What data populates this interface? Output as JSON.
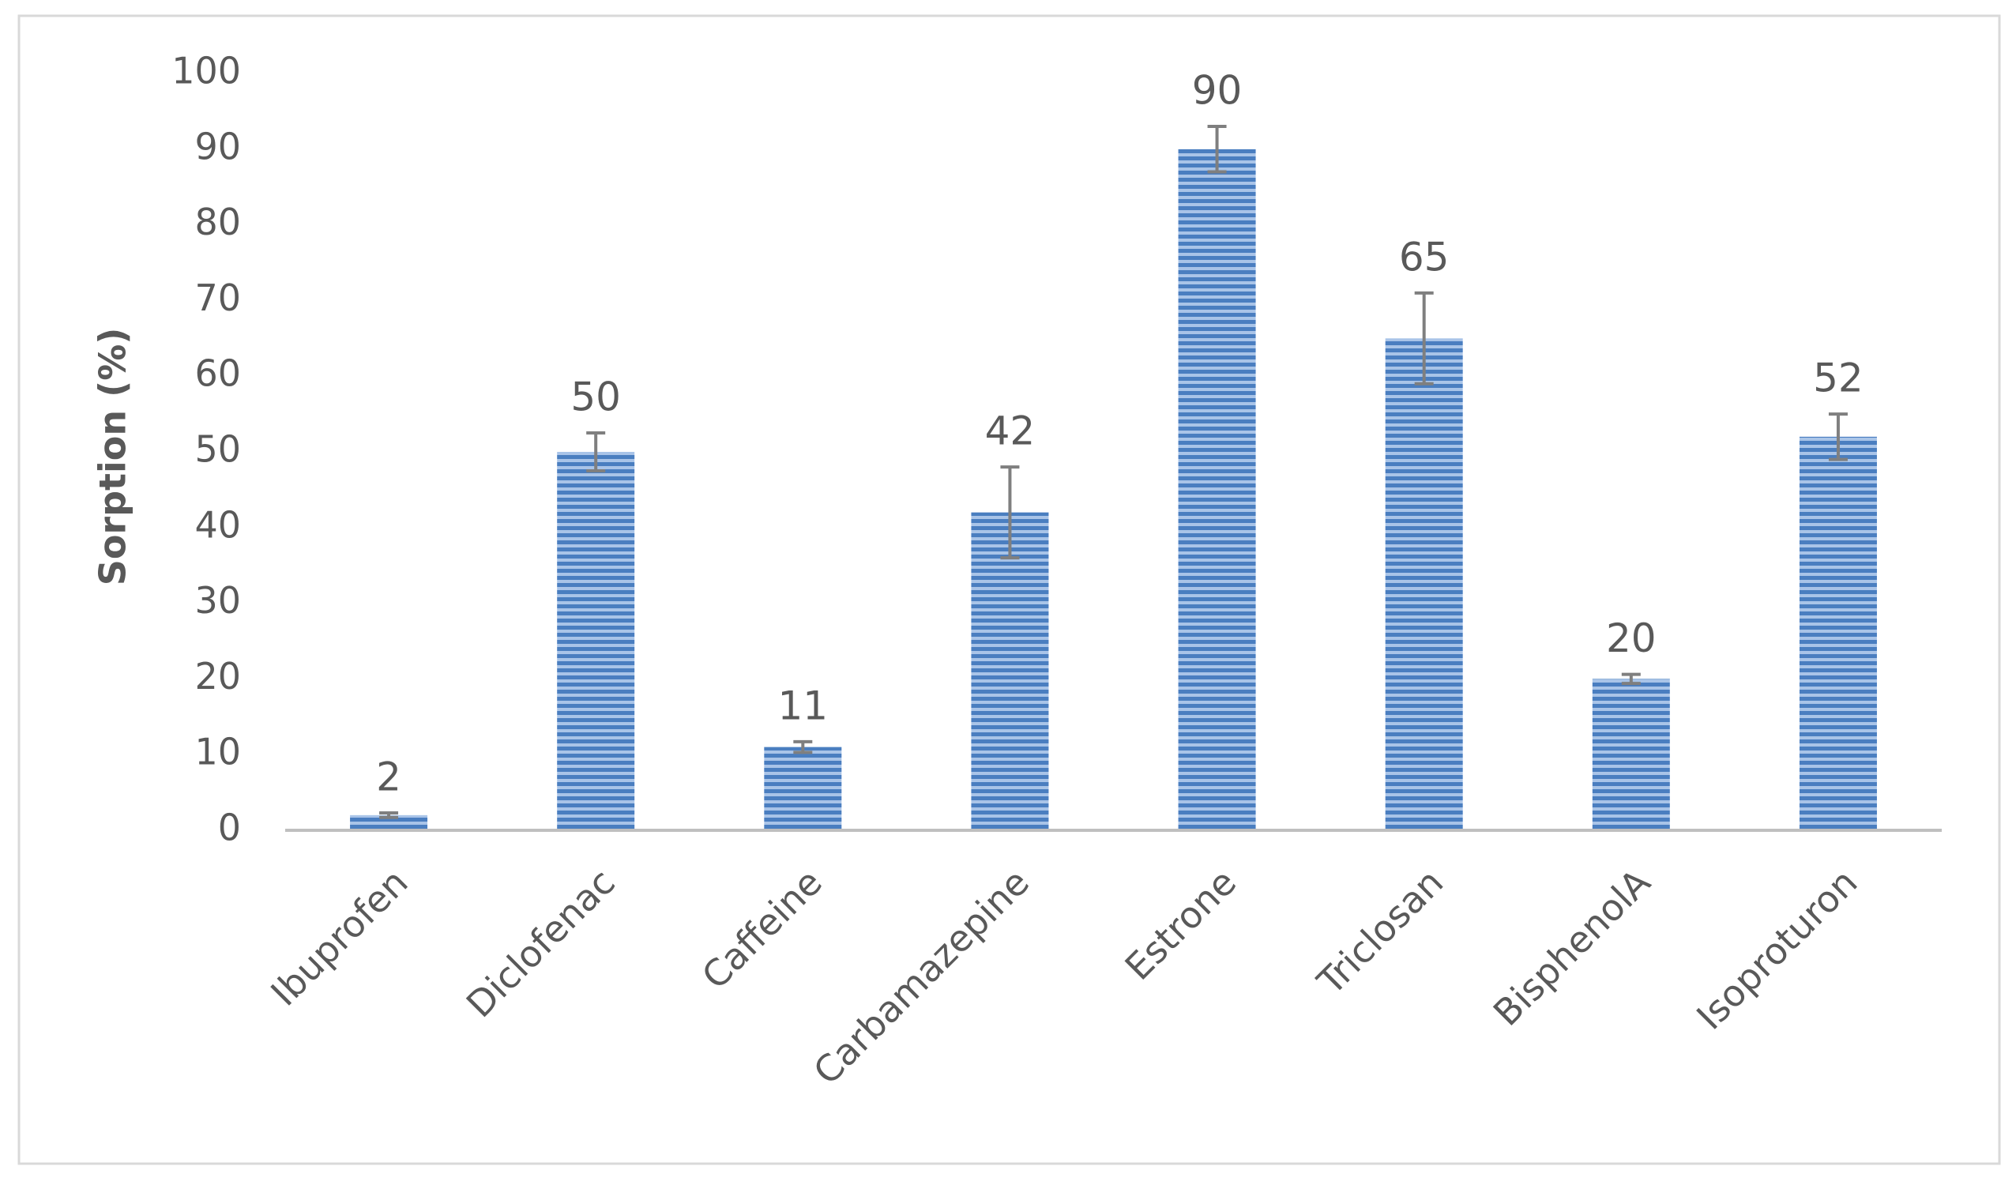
{
  "chart_data": {
    "type": "bar",
    "y_label": "Sorption (%)",
    "categories": [
      "Ibuprofen",
      "Diclofenac",
      "Caffeine",
      "Carbamazepine",
      "Estrone",
      "Triclosan",
      "BisphenolA",
      "Isoproturon"
    ],
    "values": [
      2,
      50,
      11,
      42,
      90,
      65,
      20,
      52
    ],
    "errors": [
      0.3,
      2.5,
      0.7,
      6,
      3,
      6,
      0.6,
      3
    ],
    "color": "#4472c4",
    "error_color": "#7f7f7f",
    "ylim": [
      0,
      100
    ],
    "yticks": [
      0,
      10,
      20,
      30,
      40,
      50,
      60,
      70,
      80,
      90,
      100
    ],
    "grid": false
  }
}
